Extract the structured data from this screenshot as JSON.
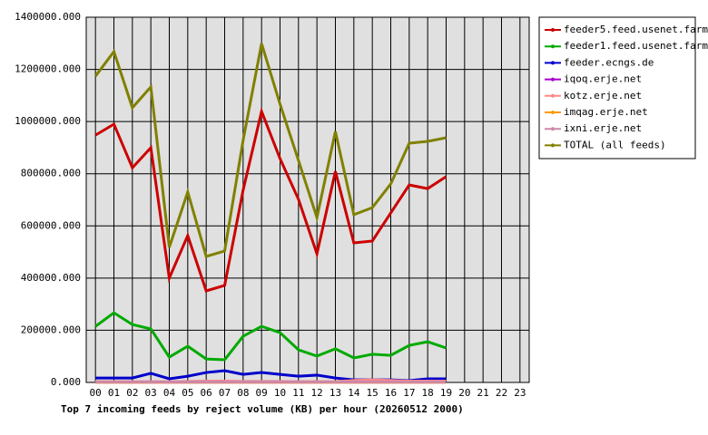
{
  "chart_data": {
    "type": "line",
    "title": "Top 7 incoming feeds by reject volume (KB) per hour (20260512 2000)",
    "categories": [
      "00",
      "01",
      "02",
      "03",
      "04",
      "05",
      "06",
      "07",
      "08",
      "09",
      "10",
      "11",
      "12",
      "13",
      "14",
      "15",
      "16",
      "17",
      "18",
      "19",
      "20",
      "21",
      "22",
      "23"
    ],
    "ylim": [
      0,
      1400000
    ],
    "yticks": [
      {
        "value": 0,
        "label": "0.000"
      },
      {
        "value": 200000,
        "label": "200000.000"
      },
      {
        "value": 400000,
        "label": "400000.000"
      },
      {
        "value": 600000,
        "label": "600000.000"
      },
      {
        "value": 800000,
        "label": "800000.000"
      },
      {
        "value": 1000000,
        "label": "1000000.000"
      },
      {
        "value": 1200000,
        "label": "1200000.000"
      },
      {
        "value": 1400000,
        "label": "1400000.000"
      }
    ],
    "grid": true,
    "legend": "right",
    "series": [
      {
        "name": "feeder5.feed.usenet.farm",
        "color": "#cc0000",
        "values": [
          948000,
          990000,
          823000,
          900000,
          400000,
          563000,
          351000,
          372000,
          737000,
          1039000,
          858000,
          702000,
          493000,
          809000,
          535000,
          542000,
          650000,
          757000,
          743000,
          789000,
          null,
          null,
          null,
          null
        ]
      },
      {
        "name": "feeder1.feed.usenet.farm",
        "color": "#00aa00",
        "values": [
          215000,
          267000,
          222000,
          205000,
          97000,
          139000,
          90000,
          87000,
          177000,
          215000,
          191000,
          125000,
          101000,
          129000,
          94000,
          108000,
          104000,
          142000,
          156000,
          132000,
          null,
          null,
          null,
          null
        ]
      },
      {
        "name": "feeder.ecngs.de",
        "color": "#0000cc",
        "values": [
          17000,
          17000,
          17000,
          35000,
          14000,
          24000,
          38000,
          45000,
          31000,
          38000,
          31000,
          24000,
          28000,
          17000,
          10000,
          10000,
          10000,
          7000,
          14000,
          14000,
          null,
          null,
          null,
          null
        ]
      },
      {
        "name": "iqoq.erje.net",
        "color": "#aa00cc",
        "values": [
          1000,
          1000,
          1000,
          1000,
          1000,
          1000,
          1000,
          1000,
          1000,
          1000,
          1000,
          1000,
          1000,
          1000,
          1000,
          1000,
          1000,
          1000,
          1000,
          1000,
          null,
          null,
          null,
          null
        ]
      },
      {
        "name": "kotz.erje.net",
        "color": "#ff8888",
        "values": [
          3000,
          3000,
          3000,
          3000,
          3000,
          4000,
          5000,
          5000,
          4000,
          4000,
          4000,
          3000,
          3000,
          3000,
          8000,
          10000,
          8000,
          5000,
          5000,
          5000,
          null,
          null,
          null,
          null
        ]
      },
      {
        "name": "imqag.erje.net",
        "color": "#ff9900",
        "values": [
          1000,
          1000,
          1000,
          1000,
          1000,
          1000,
          1000,
          1000,
          1000,
          1000,
          1000,
          1000,
          1000,
          1000,
          1000,
          1000,
          1000,
          1000,
          1000,
          1000,
          null,
          null,
          null,
          null
        ]
      },
      {
        "name": "ixni.erje.net",
        "color": "#cc88aa",
        "values": [
          2000,
          2000,
          2000,
          2000,
          2000,
          2000,
          2000,
          2000,
          2000,
          2000,
          2000,
          2000,
          2000,
          2000,
          2000,
          2000,
          2000,
          2000,
          2000,
          2000,
          null,
          null,
          null,
          null
        ]
      },
      {
        "name": "TOTAL (all feeds)",
        "color": "#808000",
        "values": [
          1174000,
          1268000,
          1053000,
          1133000,
          518000,
          730000,
          483000,
          504000,
          928000,
          1299000,
          1067000,
          851000,
          632000,
          962000,
          643000,
          670000,
          761000,
          917000,
          924000,
          938000,
          null,
          null,
          null,
          null
        ]
      }
    ]
  }
}
